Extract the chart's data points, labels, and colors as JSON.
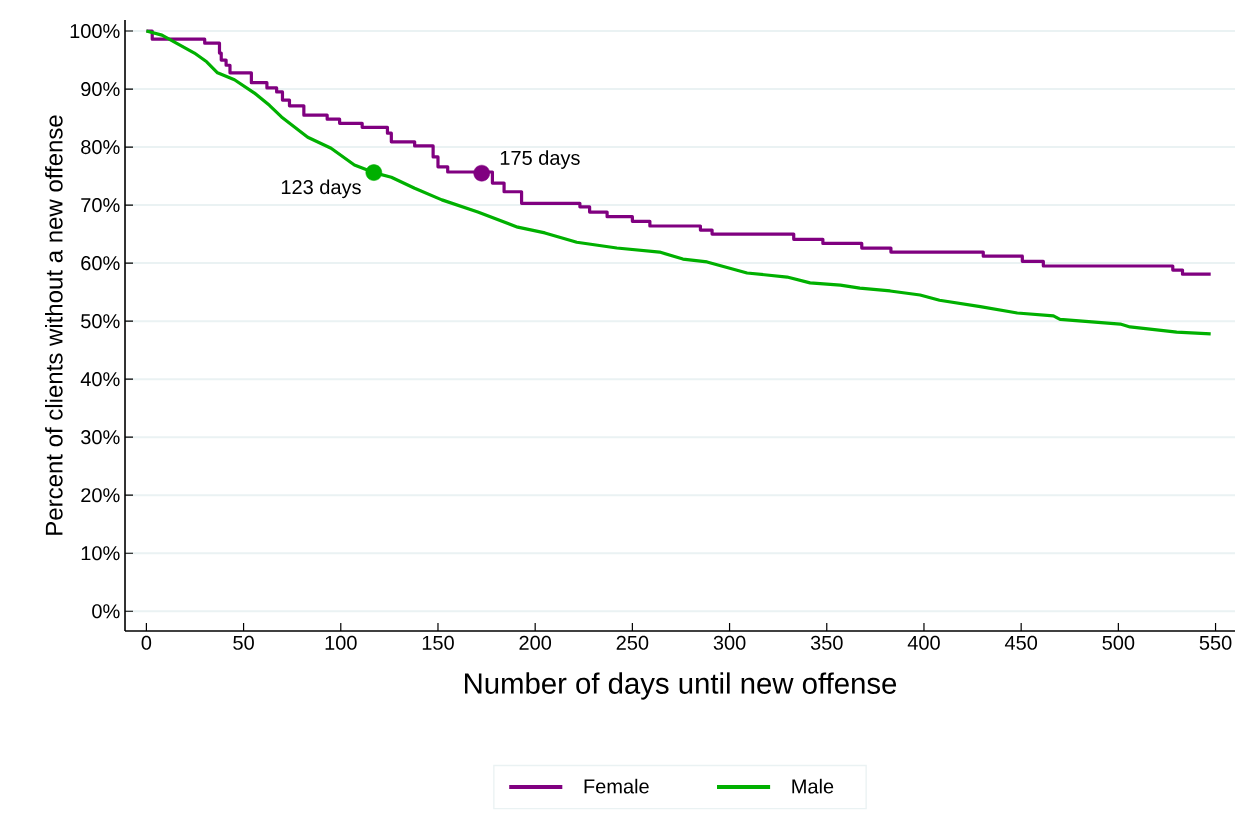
{
  "chart_data": {
    "type": "step",
    "xlabel": "Number of days until new offense",
    "ylabel": "Percent of clients without a new offense",
    "xlim": [
      -11,
      560
    ],
    "ylim": [
      -3.4,
      101.9
    ],
    "xticks": [
      0,
      50,
      100,
      150,
      200,
      250,
      300,
      350,
      400,
      450,
      500,
      550
    ],
    "yticks": [
      {
        "value": 0,
        "label": "0%"
      },
      {
        "value": 10,
        "label": "10%"
      },
      {
        "value": 20,
        "label": "20%"
      },
      {
        "value": 30,
        "label": "30%"
      },
      {
        "value": 40,
        "label": "40%"
      },
      {
        "value": 50,
        "label": "50%"
      },
      {
        "value": 60,
        "label": "60%"
      },
      {
        "value": 70,
        "label": "70%"
      },
      {
        "value": 80,
        "label": "80%"
      },
      {
        "value": 90,
        "label": "90%"
      },
      {
        "value": 100,
        "label": "100%"
      }
    ],
    "grid": "y",
    "legend": "bottom",
    "series": [
      {
        "name": "Female",
        "color": "#800080",
        "x": [
          0,
          3,
          30,
          37.6,
          38.5,
          41,
          43,
          54,
          62,
          67,
          70,
          73.6,
          81,
          93,
          99.4,
          111,
          124,
          126,
          138,
          147.5,
          150,
          155,
          178,
          184,
          193,
          223,
          228,
          237,
          250,
          259,
          285,
          291,
          333,
          348,
          368,
          383,
          430.5,
          450.6,
          461.4,
          528,
          533,
          547.5
        ],
        "values": [
          100,
          98.6,
          97.9,
          96.2,
          95,
          94.1,
          92.8,
          91.1,
          90.2,
          89.5,
          88.1,
          87.1,
          85.5,
          84.8,
          84.1,
          83.4,
          82.4,
          80.9,
          80.2,
          78.3,
          76.6,
          75.7,
          73.8,
          72.3,
          70.3,
          69.7,
          68.8,
          68,
          67.2,
          66.4,
          65.7,
          65,
          64.1,
          63.4,
          62.6,
          61.9,
          61.2,
          60.3,
          59.5,
          58.8,
          58.1,
          58.1
        ]
      },
      {
        "name": "Male",
        "color": "#00b000",
        "type": "line",
        "x": [
          0,
          8,
          24.7,
          31,
          36.6,
          45.3,
          55.6,
          63.3,
          69.5,
          83,
          95,
          107,
          117,
          126,
          138,
          152,
          170.5,
          191,
          205,
          221.4,
          242,
          264,
          276,
          288.4,
          309,
          329.6,
          341.4,
          357,
          367,
          382.6,
          398,
          408,
          429,
          448,
          466.6,
          470,
          501,
          506,
          530,
          547.5
        ],
        "values": [
          100,
          99.3,
          96.2,
          94.7,
          92.8,
          91.6,
          89.3,
          87.2,
          85.2,
          81.7,
          79.8,
          76.9,
          75.6,
          74.8,
          72.9,
          70.9,
          68.8,
          66.2,
          65.2,
          63.6,
          62.6,
          61.9,
          60.7,
          60.2,
          58.3,
          57.6,
          56.6,
          56.2,
          55.7,
          55.2,
          54.5,
          53.6,
          52.5,
          51.4,
          50.9,
          50.3,
          49.5,
          49,
          48.1,
          47.8
        ]
      },
      {
        "color": "#800080",
        "type": "scatter",
        "marker": "circle",
        "x": [
          172.5
        ],
        "values": [
          75.5
        ]
      },
      {
        "color": "#00b000",
        "type": "scatter",
        "marker": "circle",
        "x": [
          117
        ],
        "values": [
          75.6
        ]
      }
    ],
    "annotations": [
      {
        "text": "175 days",
        "x": 172.5,
        "y": 75.5
      },
      {
        "text": "123 days",
        "x": 117,
        "y": 75.6
      }
    ]
  }
}
